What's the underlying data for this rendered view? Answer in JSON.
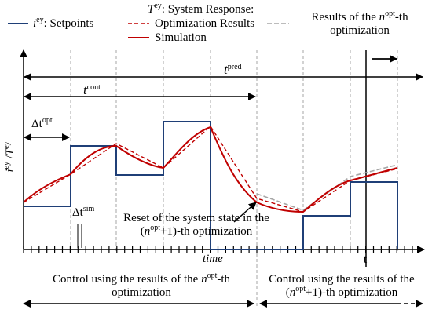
{
  "legend": {
    "setpoints": "i^ey: Setpoints",
    "setpoints_parts": {
      "sym": "i",
      "sup": "ey",
      "text": ": Setpoints"
    },
    "response_title_parts": {
      "sym": "T",
      "sup": "ey",
      "text": ": System Response:"
    },
    "optimization_results": "Optimization Results",
    "simulation": "Simulation",
    "nopt_results_parts": {
      "pre": "Results of the ",
      "sym": "n",
      "sup": "opt",
      "post": "-th",
      "line2": "optimization"
    }
  },
  "axes": {
    "ylabel_parts": {
      "a": "i",
      "a_sup": "ey",
      "sep": " /",
      "b": "T",
      "b_sup": "ey"
    },
    "xlabel": "time",
    "t_marker": "t"
  },
  "intervals": {
    "t_pred": {
      "sym": "t",
      "sup": "pred"
    },
    "t_cont": {
      "sym": "t",
      "sup": "cont"
    },
    "dt_opt": {
      "sym": "Δt",
      "sup": "opt"
    },
    "dt_sim": {
      "sym": "Δt",
      "sup": "sim"
    }
  },
  "annotation": {
    "line1": "Reset of the system state in the",
    "line2_parts": {
      "pre": "(",
      "sym": "n",
      "sup": "opt",
      "post": "+1)-th optimization"
    }
  },
  "bottom": {
    "left_parts": {
      "pre": "Control using the results of the ",
      "sym": "n",
      "sup": "opt",
      "post": "-th",
      "line2": "optimization"
    },
    "right_parts": {
      "line1": "Control using the results of the",
      "pre": "(",
      "sym": "n",
      "sup": "opt",
      "post": "+1)-th optimization"
    }
  },
  "colors": {
    "setpoints": "#1f3f77",
    "optimization": "#c00000",
    "simulation": "#c00000",
    "nopt": "#a6a6a6",
    "axis": "#000000",
    "grid": "#a6a6a6"
  }
}
